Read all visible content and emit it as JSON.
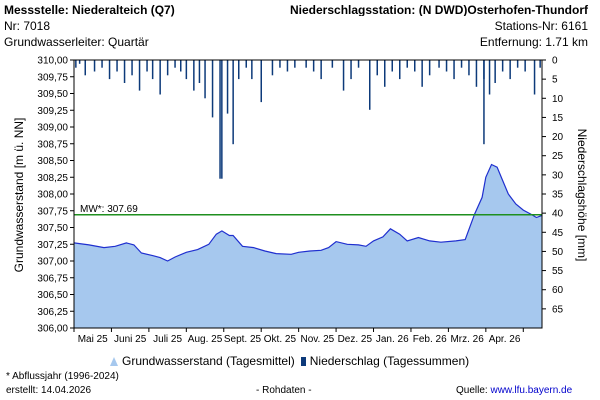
{
  "header": {
    "station_label": "Messstelle: Niederalteich (Q7)",
    "number": "Nr: 7018",
    "aquifer": "Grundwasserleiter: Quartär",
    "precip_station": "Niederschlagsstation: (N DWD)Osterhofen-Thundorf",
    "precip_number": "Stations-Nr: 6161",
    "distance": "Entfernung: 1.71 km"
  },
  "footer": {
    "note": "* Abflussjahr (1996-2024)",
    "created": "erstellt:  14.04.2026",
    "raw": "- Rohdaten -",
    "source_label": "Quelle:",
    "source_url": "www.lfu.bayern.de"
  },
  "legend": {
    "groundwater": "Grundwasserstand (Tagesmittel)",
    "precip": "Niederschlag (Tagessummen)"
  },
  "colors": {
    "area_fill": "#a6c8ee",
    "line": "#1f2fcf",
    "precip": "#0d3a7a",
    "mw": "#1f8f1f"
  },
  "chart_data": {
    "type": "area",
    "title": "",
    "xlabel": "",
    "ylabel": "Grundwasserstand [m ü. NN]",
    "y2label": "Niederschlagshöhe [mm]",
    "ylim": [
      306.0,
      310.0
    ],
    "y2lim": [
      0,
      70
    ],
    "yticks": [
      "310,00",
      "309,75",
      "309,50",
      "309,25",
      "309,00",
      "308,75",
      "308,50",
      "308,25",
      "308,00",
      "307,75",
      "307,50",
      "307,25",
      "307,00",
      "306,75",
      "306,50",
      "306,25",
      "306,00"
    ],
    "y2ticks": [
      "0",
      "5",
      "10",
      "15",
      "20",
      "25",
      "30",
      "35",
      "40",
      "45",
      "50",
      "55",
      "60",
      "65"
    ],
    "xticks": [
      "Mai 25",
      "Juni 25",
      "Juli 25",
      "Aug. 25",
      "Sept. 25",
      "Okt. 25",
      "Nov. 25",
      "Dez. 25",
      "Jan. 26",
      "Feb. 26",
      "Mrz. 26",
      "Apr. 26"
    ],
    "mw": {
      "label": "MW*: 307.69",
      "value": 307.69
    },
    "x_range_months": [
      0,
      12.5
    ],
    "groundwater": [
      [
        0,
        307.27
      ],
      [
        0.4,
        307.24
      ],
      [
        0.8,
        307.2
      ],
      [
        1.1,
        307.22
      ],
      [
        1.4,
        307.27
      ],
      [
        1.6,
        307.24
      ],
      [
        1.8,
        307.12
      ],
      [
        2.1,
        307.08
      ],
      [
        2.3,
        307.05
      ],
      [
        2.5,
        307.0
      ],
      [
        2.7,
        307.06
      ],
      [
        3.0,
        307.13
      ],
      [
        3.3,
        307.17
      ],
      [
        3.6,
        307.25
      ],
      [
        3.8,
        307.4
      ],
      [
        3.95,
        307.45
      ],
      [
        4.15,
        307.38
      ],
      [
        4.25,
        307.38
      ],
      [
        4.5,
        307.22
      ],
      [
        4.8,
        307.2
      ],
      [
        5.1,
        307.15
      ],
      [
        5.4,
        307.11
      ],
      [
        5.8,
        307.1
      ],
      [
        6.0,
        307.13
      ],
      [
        6.3,
        307.15
      ],
      [
        6.6,
        307.16
      ],
      [
        6.8,
        307.2
      ],
      [
        7.0,
        307.29
      ],
      [
        7.3,
        307.25
      ],
      [
        7.6,
        307.24
      ],
      [
        7.8,
        307.22
      ],
      [
        8.0,
        307.3
      ],
      [
        8.25,
        307.36
      ],
      [
        8.45,
        307.48
      ],
      [
        8.7,
        307.4
      ],
      [
        8.9,
        307.3
      ],
      [
        9.2,
        307.35
      ],
      [
        9.5,
        307.3
      ],
      [
        9.8,
        307.28
      ],
      [
        10.2,
        307.3
      ],
      [
        10.45,
        307.32
      ],
      [
        10.7,
        307.7
      ],
      [
        10.9,
        307.95
      ],
      [
        11.0,
        308.25
      ],
      [
        11.15,
        308.44
      ],
      [
        11.3,
        308.4
      ],
      [
        11.45,
        308.2
      ],
      [
        11.6,
        308.0
      ],
      [
        11.8,
        307.85
      ],
      [
        12.0,
        307.76
      ],
      [
        12.2,
        307.7
      ],
      [
        12.35,
        307.65
      ],
      [
        12.5,
        307.68
      ]
    ],
    "precip": [
      [
        0.05,
        2
      ],
      [
        0.15,
        1
      ],
      [
        0.3,
        4
      ],
      [
        0.55,
        3
      ],
      [
        0.75,
        2
      ],
      [
        0.95,
        5
      ],
      [
        1.15,
        3
      ],
      [
        1.35,
        6
      ],
      [
        1.55,
        4
      ],
      [
        1.75,
        8
      ],
      [
        1.95,
        3
      ],
      [
        2.1,
        5
      ],
      [
        2.3,
        9
      ],
      [
        2.5,
        4
      ],
      [
        2.7,
        2
      ],
      [
        2.85,
        3
      ],
      [
        3.0,
        5
      ],
      [
        3.2,
        8
      ],
      [
        3.35,
        6
      ],
      [
        3.5,
        10
      ],
      [
        3.7,
        15
      ],
      [
        3.9,
        31
      ],
      [
        4.1,
        14
      ],
      [
        4.4,
        5
      ],
      [
        4.6,
        2
      ],
      [
        4.75,
        5
      ],
      [
        5.0,
        11
      ],
      [
        5.3,
        4
      ],
      [
        5.5,
        2
      ],
      [
        5.7,
        3
      ],
      [
        5.9,
        2
      ],
      [
        6.2,
        2
      ],
      [
        6.4,
        3
      ],
      [
        6.6,
        5
      ],
      [
        6.9,
        2
      ],
      [
        7.2,
        8
      ],
      [
        7.4,
        5
      ],
      [
        7.6,
        2
      ],
      [
        7.9,
        13
      ],
      [
        8.1,
        4
      ],
      [
        8.3,
        7
      ],
      [
        8.5,
        3
      ],
      [
        8.7,
        5
      ],
      [
        8.9,
        2
      ],
      [
        9.1,
        3
      ],
      [
        9.3,
        7
      ],
      [
        9.5,
        4
      ],
      [
        9.75,
        2
      ],
      [
        9.95,
        3
      ],
      [
        10.15,
        5
      ],
      [
        10.35,
        2
      ],
      [
        10.55,
        4
      ],
      [
        10.75,
        7
      ],
      [
        10.95,
        5
      ],
      [
        11.1,
        9
      ],
      [
        11.25,
        6
      ],
      [
        11.45,
        3
      ],
      [
        11.65,
        5
      ],
      [
        11.85,
        2
      ],
      [
        12.05,
        3
      ],
      [
        12.3,
        9
      ],
      [
        12.45,
        2
      ]
    ],
    "precip_spikes": [
      {
        "x": 3.95,
        "value": 31
      },
      {
        "x": 4.25,
        "value": 22
      },
      {
        "x": 10.95,
        "value": 22
      }
    ]
  }
}
